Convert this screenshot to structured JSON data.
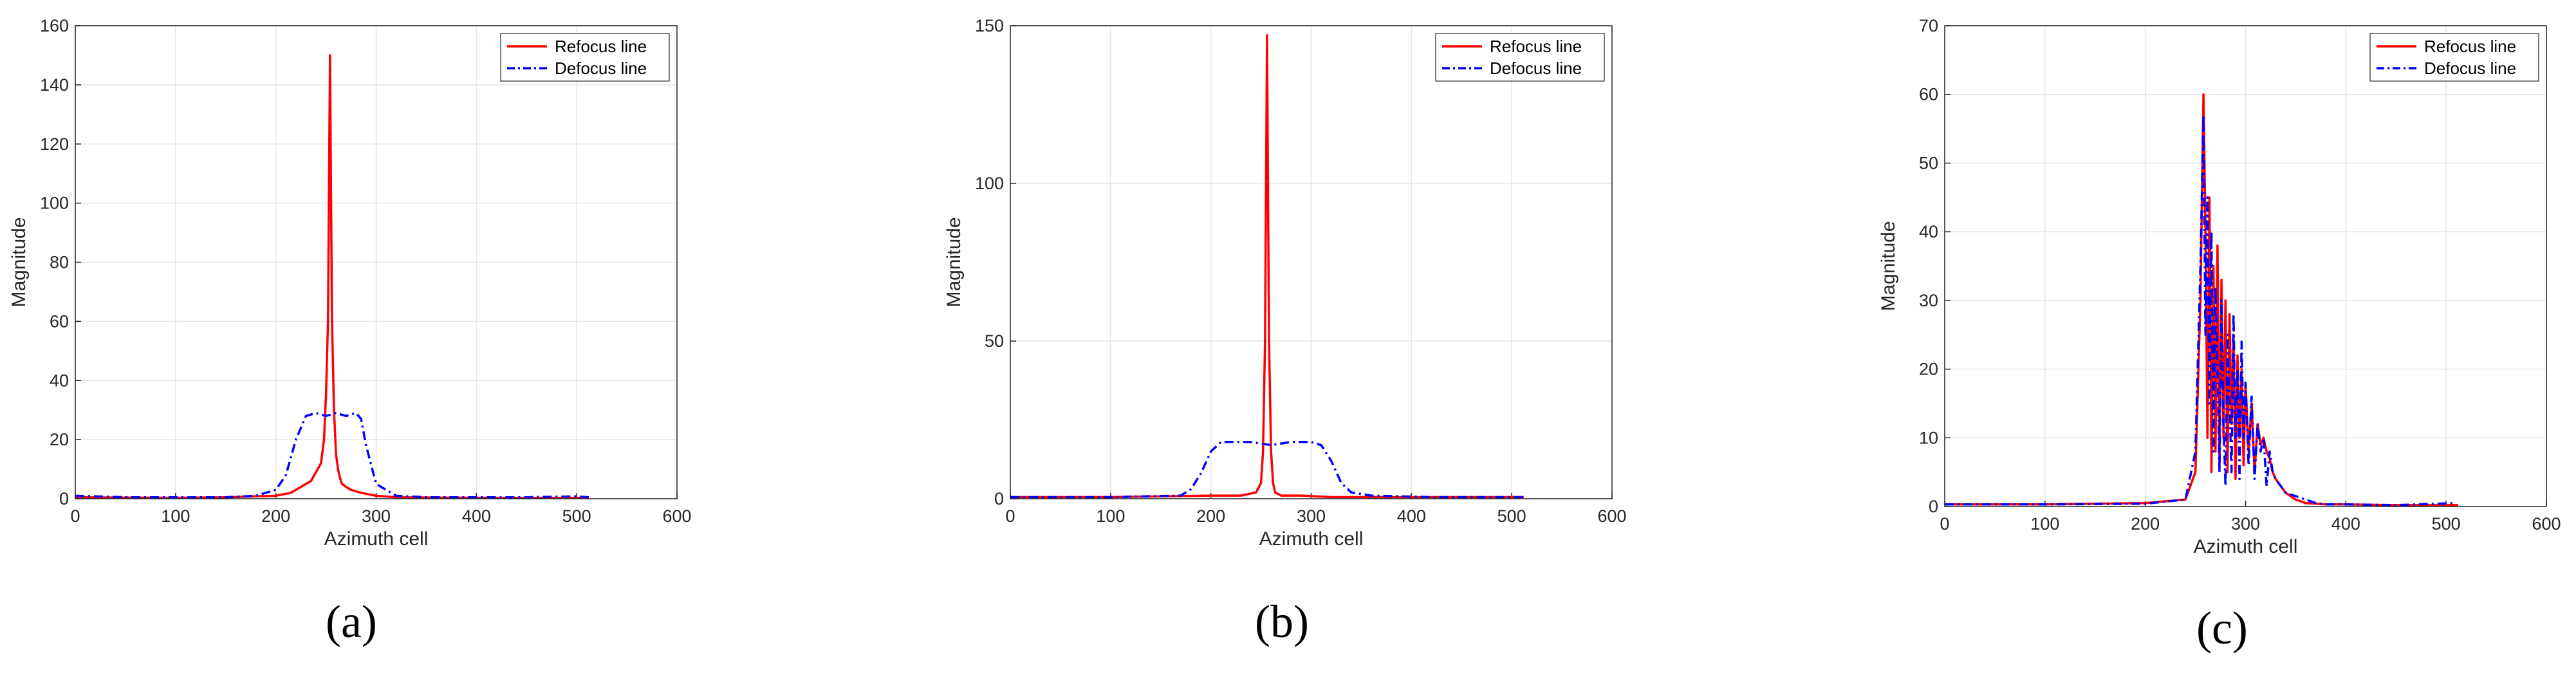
{
  "chart_data": [
    {
      "type": "line",
      "panel_label": "(a)",
      "xlabel": "Azimuth cell",
      "ylabel": "Magnitude",
      "xlim": [
        0,
        600
      ],
      "ylim": [
        0,
        160
      ],
      "xticks": [
        "0",
        "100",
        "200",
        "300",
        "400",
        "500",
        "600"
      ],
      "yticks": [
        "0",
        "20",
        "40",
        "60",
        "80",
        "100",
        "120",
        "140",
        "160"
      ],
      "grid": true,
      "legend_position": "top-right",
      "series": [
        {
          "name": "Refocus line",
          "color": "#ff0000",
          "style": "solid",
          "x": [
            0,
            50,
            100,
            150,
            200,
            215,
            225,
            235,
            240,
            245,
            248,
            250,
            252,
            254,
            256,
            258,
            260,
            262,
            264,
            266,
            270,
            275,
            285,
            300,
            320,
            360,
            420,
            480,
            512
          ],
          "y": [
            0.5,
            0.4,
            0.3,
            0.5,
            1,
            2,
            4,
            6,
            9,
            12,
            20,
            35,
            60,
            150,
            60,
            30,
            15,
            10,
            7,
            5,
            4,
            3,
            2,
            1,
            0.5,
            0.4,
            0.3,
            0.3,
            0.3
          ]
        },
        {
          "name": "Defocus line",
          "color": "#0000ff",
          "style": "dashdot",
          "x": [
            0,
            50,
            100,
            150,
            180,
            200,
            210,
            220,
            230,
            240,
            250,
            260,
            270,
            280,
            285,
            290,
            300,
            320,
            350,
            400,
            450,
            500,
            512
          ],
          "y": [
            1,
            0.5,
            0.5,
            0.5,
            1,
            3,
            8,
            20,
            28,
            29,
            28,
            29,
            28,
            29,
            27,
            18,
            5,
            1,
            0.5,
            0.5,
            0.5,
            0.8,
            0.5
          ]
        }
      ]
    },
    {
      "type": "line",
      "panel_label": "(b)",
      "xlabel": "Azimuth cell",
      "ylabel": "Magnitude",
      "xlim": [
        0,
        600
      ],
      "ylim": [
        0,
        150
      ],
      "xticks": [
        "0",
        "100",
        "200",
        "300",
        "400",
        "500",
        "600"
      ],
      "yticks": [
        "0",
        "50",
        "100",
        "150"
      ],
      "grid": true,
      "legend_position": "top-right",
      "series": [
        {
          "name": "Refocus line",
          "color": "#ff0000",
          "style": "solid",
          "x": [
            0,
            100,
            200,
            230,
            245,
            250,
            252,
            254,
            256,
            258,
            260,
            262,
            264,
            270,
            290,
            320,
            400,
            512
          ],
          "y": [
            0.5,
            0.5,
            1,
            1,
            2,
            5,
            15,
            50,
            147,
            50,
            15,
            5,
            2,
            1,
            1,
            0.5,
            0.5,
            0.5
          ]
        },
        {
          "name": "Defocus line",
          "color": "#0000ff",
          "style": "dashdot",
          "x": [
            0,
            100,
            170,
            180,
            190,
            200,
            210,
            220,
            240,
            260,
            280,
            300,
            310,
            320,
            330,
            340,
            360,
            420,
            512
          ],
          "y": [
            0.5,
            0.5,
            1,
            3,
            8,
            15,
            18,
            18,
            18,
            17,
            18,
            18,
            17,
            12,
            5,
            2,
            1,
            0.5,
            0.5
          ]
        }
      ]
    },
    {
      "type": "line",
      "panel_label": "(c)",
      "xlabel": "Azimuth cell",
      "ylabel": "Magnitude",
      "xlim": [
        0,
        600
      ],
      "ylim": [
        0,
        70
      ],
      "xticks": [
        "0",
        "100",
        "200",
        "300",
        "400",
        "500",
        "600"
      ],
      "yticks": [
        "0",
        "10",
        "20",
        "30",
        "40",
        "50",
        "60",
        "70"
      ],
      "grid": true,
      "legend_position": "top-right",
      "series": [
        {
          "name": "Refocus line",
          "color": "#ff0000",
          "style": "solid",
          "x": [
            0,
            100,
            200,
            240,
            250,
            255,
            258,
            260,
            262,
            264,
            266,
            268,
            270,
            272,
            274,
            276,
            278,
            280,
            282,
            284,
            286,
            288,
            290,
            292,
            294,
            296,
            298,
            300,
            303,
            306,
            309,
            312,
            315,
            318,
            321,
            324,
            327,
            330,
            335,
            340,
            345,
            350,
            360,
            380,
            400,
            450,
            512
          ],
          "y": [
            0.3,
            0.3,
            0.5,
            1,
            5,
            30,
            60,
            40,
            10,
            45,
            5,
            35,
            8,
            38,
            6,
            33,
            10,
            30,
            5,
            28,
            12,
            25,
            4,
            22,
            10,
            20,
            6,
            18,
            8,
            15,
            5,
            12,
            9,
            10,
            8,
            7,
            5,
            4,
            3,
            2,
            1.5,
            1,
            0.5,
            0.3,
            0.3,
            0.2,
            0.2
          ]
        },
        {
          "name": "Defocus line",
          "color": "#0000ff",
          "style": "dashdot",
          "x": [
            0,
            100,
            200,
            240,
            250,
            255,
            258,
            260,
            262,
            264,
            266,
            268,
            270,
            272,
            274,
            276,
            278,
            280,
            282,
            284,
            286,
            288,
            290,
            292,
            294,
            296,
            298,
            300,
            303,
            306,
            309,
            312,
            315,
            318,
            321,
            324,
            327,
            330,
            335,
            340,
            350,
            360,
            370,
            380,
            400,
            450,
            510
          ],
          "y": [
            0.3,
            0.3,
            0.4,
            1,
            8,
            35,
            57,
            25,
            45,
            15,
            40,
            8,
            32,
            20,
            5,
            30,
            12,
            3,
            25,
            15,
            5,
            28,
            10,
            20,
            4,
            24,
            10,
            18,
            6,
            16,
            4,
            12,
            8,
            10,
            3,
            8,
            5,
            4,
            3,
            2,
            1.5,
            1,
            0.5,
            0.3,
            0.3,
            0.2,
            0.5
          ]
        }
      ]
    }
  ]
}
